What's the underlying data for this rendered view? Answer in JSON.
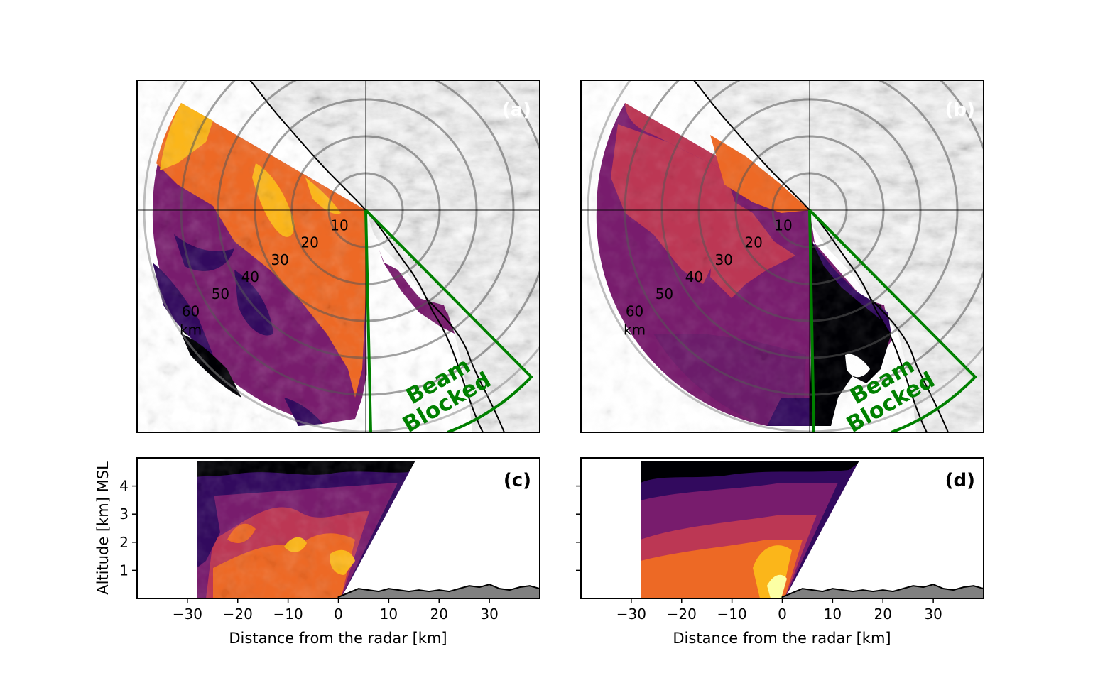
{
  "panels": {
    "a": {
      "tag": "(a)"
    },
    "b": {
      "tag": "(b)"
    },
    "c": {
      "tag": "(c)"
    },
    "d": {
      "tag": "(d)"
    }
  },
  "ppi": {
    "ring_labels": [
      "10",
      "20",
      "30",
      "40",
      "50",
      "60"
    ],
    "unit": "km",
    "beam_label_1": "Beam",
    "beam_label_2": "Blocked"
  },
  "colors": {
    "beam_blocked": "#008000",
    "terrain": "#808080",
    "palette_inferno": [
      "#000004",
      "#320a5e",
      "#781c6d",
      "#bc3754",
      "#ed6925",
      "#fbb61a",
      "#fcffa4"
    ]
  },
  "chart_data": [
    {
      "type": "heatmap",
      "panel": "c",
      "xlabel": "Distance from the radar [km]",
      "ylabel": "Altitude [km] MSL",
      "xlim": [
        -40,
        40
      ],
      "ylim": [
        0,
        5
      ],
      "xticks": [
        -30,
        -20,
        -10,
        0,
        10,
        20,
        30
      ],
      "yticks": [
        1,
        2,
        3,
        4
      ],
      "terrain": {
        "x": [
          0,
          2,
          4,
          6,
          8,
          10,
          12,
          14,
          16,
          18,
          20,
          22,
          24,
          26,
          28,
          30,
          32,
          34,
          36,
          38,
          40
        ],
        "altitude_km": [
          0.05,
          0.2,
          0.35,
          0.3,
          0.25,
          0.35,
          0.3,
          0.25,
          0.3,
          0.25,
          0.3,
          0.25,
          0.35,
          0.45,
          0.4,
          0.5,
          0.35,
          0.3,
          0.4,
          0.45,
          0.35
        ]
      }
    },
    {
      "type": "heatmap",
      "panel": "d",
      "xlabel": "Distance from the radar [km]",
      "xlim": [
        -40,
        40
      ],
      "ylim": [
        0,
        5
      ],
      "xticks": [
        -30,
        -20,
        -10,
        0,
        10,
        20,
        30
      ],
      "yticks": [
        1,
        2,
        3,
        4
      ],
      "terrain": {
        "x": [
          0,
          2,
          4,
          6,
          8,
          10,
          12,
          14,
          16,
          18,
          20,
          22,
          24,
          26,
          28,
          30,
          32,
          34,
          36,
          38,
          40
        ],
        "altitude_km": [
          0.05,
          0.2,
          0.35,
          0.3,
          0.25,
          0.35,
          0.3,
          0.25,
          0.3,
          0.25,
          0.3,
          0.25,
          0.35,
          0.45,
          0.4,
          0.5,
          0.35,
          0.3,
          0.4,
          0.45,
          0.35
        ]
      }
    }
  ]
}
